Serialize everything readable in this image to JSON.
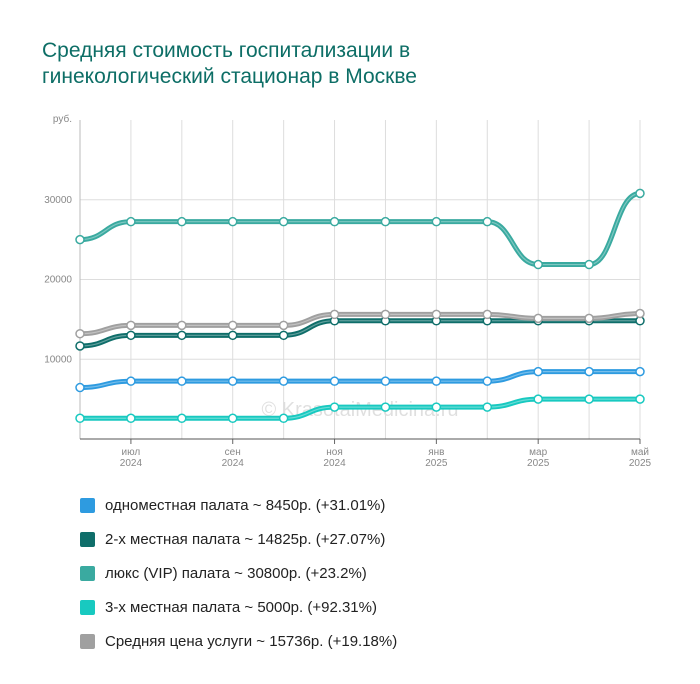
{
  "chart_data": {
    "type": "line",
    "title": "Средняя стоимость госпитализации в гинекологический стационар в Москве",
    "y_label": "руб.",
    "watermark": "© KrasotaiMedicina.ru",
    "categories": [
      null,
      "июл 2024",
      null,
      "сен 2024",
      null,
      "ноя 2024",
      null,
      "янв 2025",
      null,
      "мар 2025",
      null,
      "май 2025"
    ],
    "ylim": [
      0,
      40000
    ],
    "yticks": [
      10000,
      20000,
      30000
    ],
    "grid": true,
    "series": [
      {
        "name": "одноместная палата ~ 8450р. (+31.01%)",
        "color": "#2e9be0",
        "values": [
          6450,
          7250,
          7250,
          7250,
          7250,
          7250,
          7250,
          7250,
          7250,
          8450,
          8450,
          8450
        ]
      },
      {
        "name": "2-х местная палата ~ 14825р. (+27.07%)",
        "color": "#0f6e6a",
        "values": [
          11667,
          13000,
          13000,
          13000,
          13000,
          14825,
          14825,
          14825,
          14825,
          14825,
          14825,
          14825
        ]
      },
      {
        "name": "люкс (VIP) палата ~ 30800р. (+23.2%)",
        "color": "#3aaaa0",
        "values": [
          25000,
          27250,
          27250,
          27250,
          27250,
          27250,
          27250,
          27250,
          27250,
          21875,
          21875,
          30800
        ]
      },
      {
        "name": "3-х местная палата ~ 5000р. (+92.31%)",
        "color": "#18c9c0",
        "values": [
          2600,
          2600,
          2600,
          2600,
          2600,
          4000,
          4000,
          4000,
          4000,
          5000,
          5000,
          5000
        ]
      },
      {
        "name": "Средняя цена услуги ~ 15736р. (+19.18%)",
        "color": "#a0a0a0",
        "values": [
          13204,
          14250,
          14250,
          14250,
          14250,
          15625,
          15625,
          15625,
          15625,
          15125,
          15125,
          15736
        ]
      }
    ]
  }
}
